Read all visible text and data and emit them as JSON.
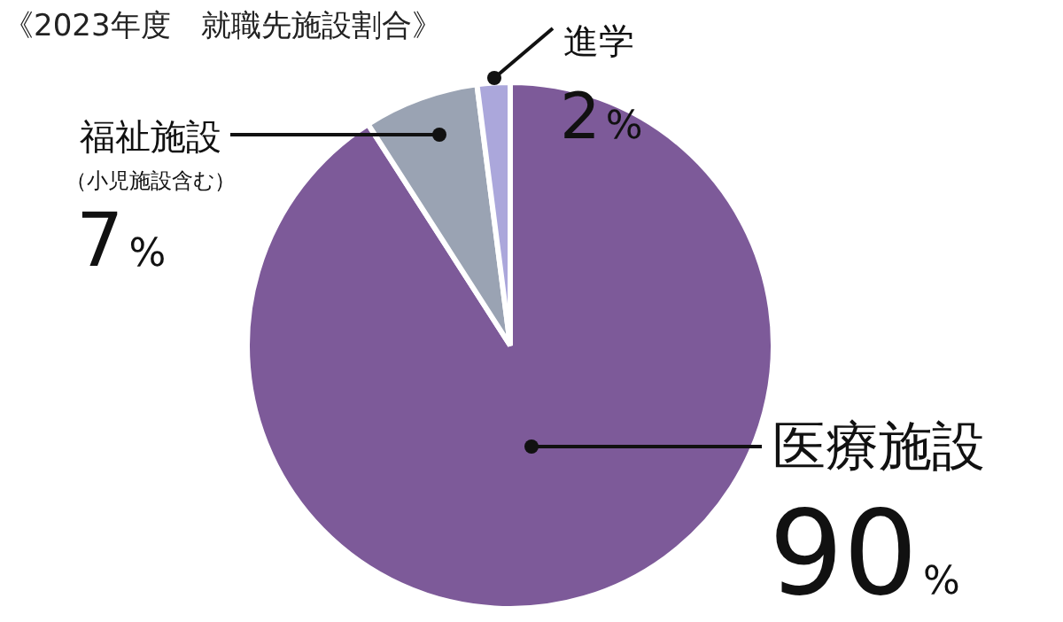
{
  "chart_data": {
    "type": "pie",
    "title": "《2023年度　就職先施設割合》",
    "categories": [
      "医療施設",
      "福祉施設",
      "進学"
    ],
    "values": [
      90,
      7,
      2
    ],
    "value_labels": [
      "90%",
      "7%",
      "2%"
    ],
    "colors": [
      "#7d5a99",
      "#9aa3b3",
      "#aba7db"
    ],
    "annotations": [
      "（小児施設含む）"
    ],
    "legend": false
  }
}
